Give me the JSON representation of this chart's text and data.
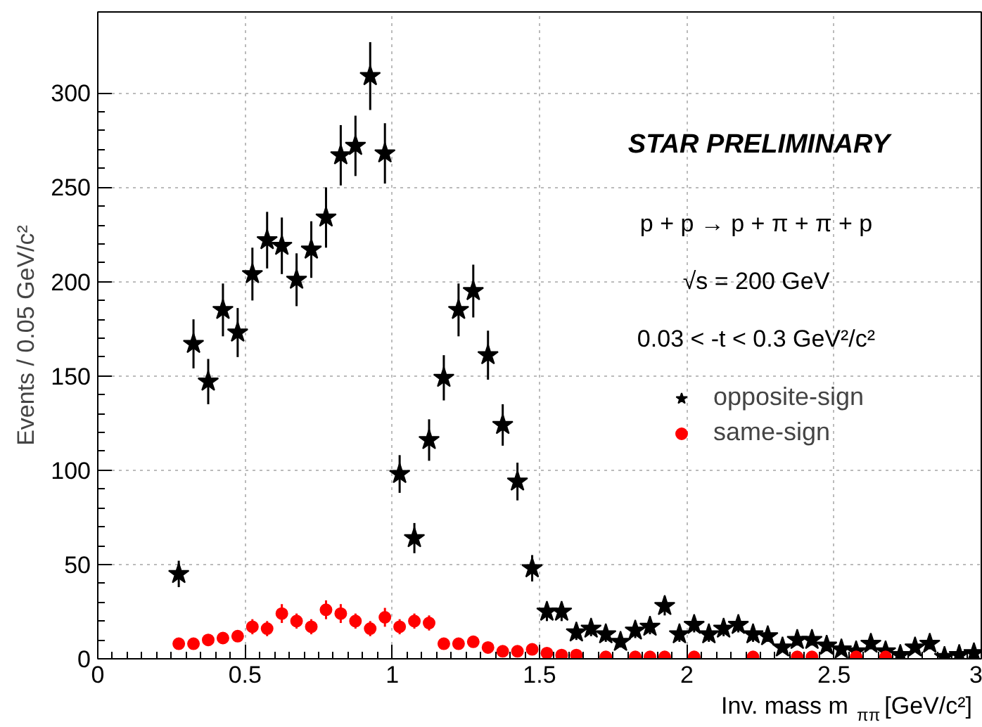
{
  "chart_data": {
    "type": "scatter",
    "xlabel": "Inv. mass  m$_{ππ}$ [GeV/c²]",
    "ylabel": "Events / 0.05 GeV/c²",
    "annotations": [
      "STAR PRELIMINARY",
      "p + p → p + π + π + p",
      "√s = 200 GeV",
      "0.03 < -t < 0.3 GeV²/c²"
    ],
    "xlim": [
      0,
      3
    ],
    "ylim": [
      0,
      343
    ],
    "xticks": [
      0,
      0.5,
      1,
      1.5,
      2,
      2.5,
      3
    ],
    "yticks": [
      0,
      50,
      100,
      150,
      200,
      250,
      300
    ],
    "grid": true,
    "legend": "right",
    "series": [
      {
        "name": "opposite-sign",
        "color": "#000000",
        "marker": "star",
        "x": [
          0.275,
          0.325,
          0.375,
          0.425,
          0.475,
          0.525,
          0.575,
          0.625,
          0.675,
          0.725,
          0.775,
          0.825,
          0.875,
          0.925,
          0.975,
          1.025,
          1.075,
          1.125,
          1.175,
          1.225,
          1.275,
          1.325,
          1.375,
          1.425,
          1.475,
          1.525,
          1.575,
          1.625,
          1.675,
          1.725,
          1.775,
          1.825,
          1.875,
          1.925,
          1.975,
          2.025,
          2.075,
          2.125,
          2.175,
          2.225,
          2.275,
          2.325,
          2.375,
          2.425,
          2.475,
          2.525,
          2.575,
          2.625,
          2.675,
          2.725,
          2.775,
          2.825,
          2.875,
          2.925,
          2.975
        ],
        "values": [
          45,
          167,
          147,
          185,
          173,
          204,
          222,
          219,
          201,
          217,
          234,
          267,
          272,
          309,
          268,
          98,
          64,
          116,
          149,
          185,
          195,
          161,
          124,
          94,
          48,
          25,
          25,
          14,
          16,
          13,
          9,
          15,
          17,
          28,
          13,
          18,
          13,
          16,
          18,
          13,
          12,
          6,
          10,
          10,
          7,
          5,
          4,
          8,
          4,
          2,
          6,
          8,
          1,
          2,
          3
        ],
        "errors": [
          7,
          13,
          12,
          14,
          13,
          14,
          15,
          15,
          14,
          15,
          16,
          16,
          16,
          18,
          16,
          10,
          8,
          11,
          12,
          14,
          14,
          13,
          11,
          10,
          7,
          5,
          5,
          4,
          4,
          4,
          3,
          4,
          4,
          5,
          4,
          4,
          4,
          4,
          4,
          4,
          3,
          2,
          3,
          3,
          3,
          2,
          2,
          3,
          2,
          1,
          2,
          3,
          1,
          1,
          2
        ]
      },
      {
        "name": "same-sign",
        "color": "#ff0000",
        "marker": "circle",
        "x": [
          0.275,
          0.325,
          0.375,
          0.425,
          0.475,
          0.525,
          0.575,
          0.625,
          0.675,
          0.725,
          0.775,
          0.825,
          0.875,
          0.925,
          0.975,
          1.025,
          1.075,
          1.125,
          1.175,
          1.225,
          1.275,
          1.325,
          1.375,
          1.425,
          1.475,
          1.525,
          1.575,
          1.625,
          1.725,
          1.825,
          1.875,
          1.925,
          2.025,
          2.225,
          2.375,
          2.425,
          2.575,
          2.675
        ],
        "values": [
          8,
          8,
          10,
          11,
          12,
          17,
          16,
          24,
          20,
          17,
          26,
          24,
          20,
          16,
          22,
          17,
          20,
          19,
          8,
          8,
          9,
          6,
          4,
          4,
          5,
          3,
          2,
          2,
          1,
          1,
          1,
          1,
          1,
          1,
          1,
          1,
          1,
          1
        ],
        "errors": [
          3,
          3,
          3,
          3,
          3,
          4,
          4,
          5,
          4,
          4,
          5,
          5,
          4,
          4,
          5,
          4,
          4,
          4,
          3,
          3,
          3,
          2,
          2,
          2,
          2,
          2,
          1,
          1,
          1,
          1,
          1,
          1,
          1,
          1,
          1,
          1,
          1,
          1
        ]
      }
    ]
  }
}
